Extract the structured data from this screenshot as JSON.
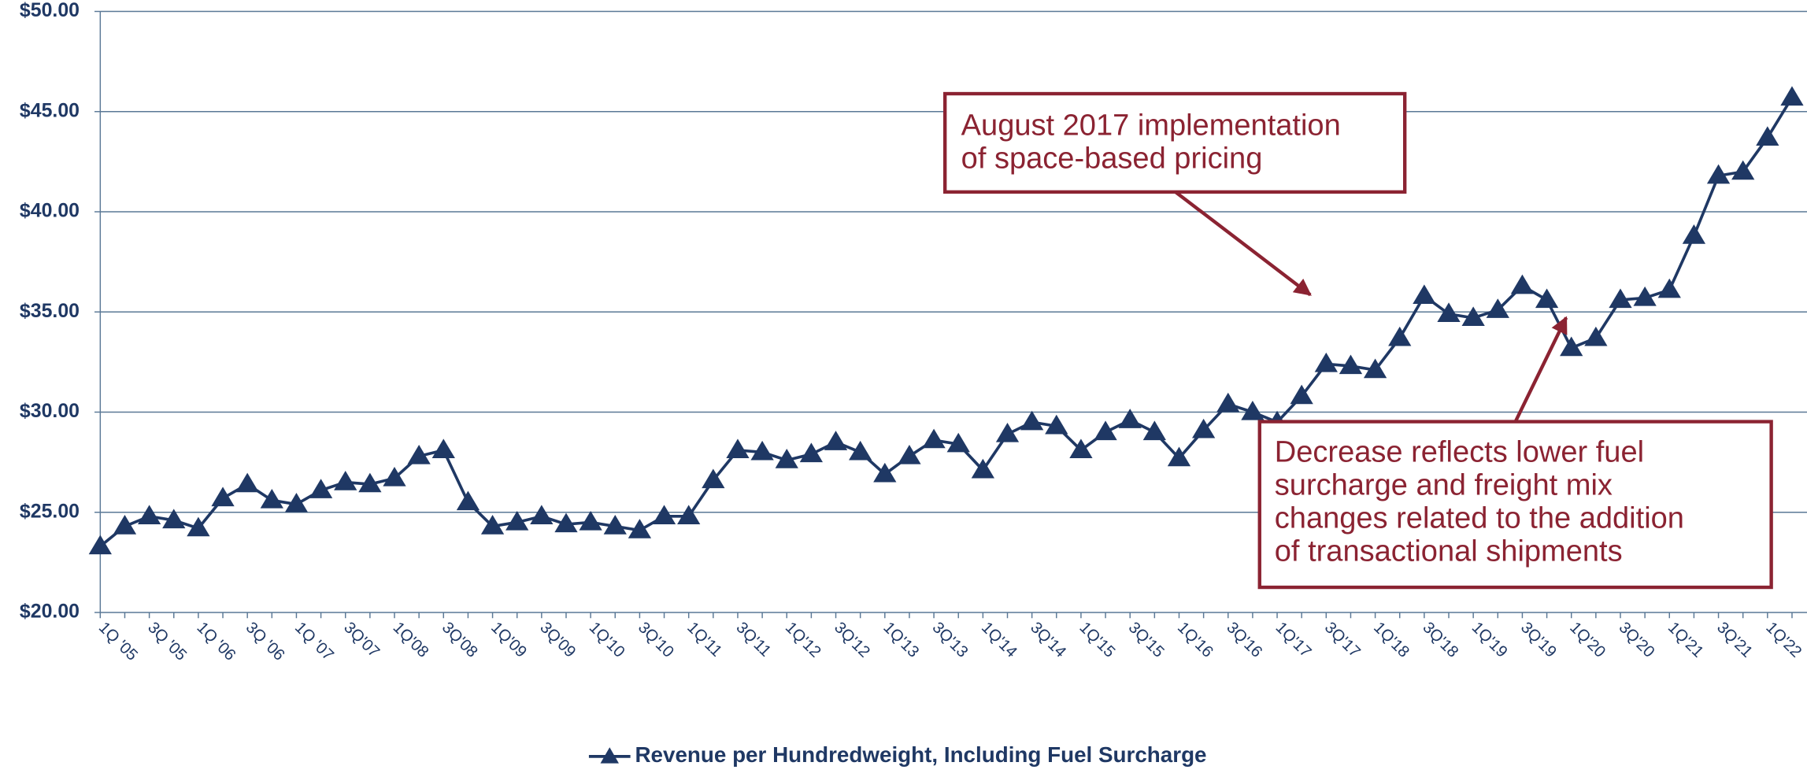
{
  "chart_data": {
    "type": "line",
    "categories": [
      "1Q '05",
      null,
      "3Q '05",
      null,
      "1Q '06",
      null,
      "3Q '06",
      null,
      "1Q '07",
      null,
      "3Q'07",
      null,
      "1Q'08",
      null,
      "3Q'08",
      null,
      "1Q'09",
      null,
      "3Q'09",
      null,
      "1Q'10",
      null,
      "3Q'10",
      null,
      "1Q'11",
      null,
      "3Q'11",
      null,
      "1Q'12",
      null,
      "3Q'12",
      null,
      "1Q'13",
      null,
      "3Q'13",
      null,
      "1Q'14",
      null,
      "3Q'14",
      null,
      "1Q'15",
      null,
      "3Q'15",
      null,
      "1Q'16",
      null,
      "3Q'16",
      null,
      "1Q'17",
      null,
      "3Q'17",
      null,
      "1Q'18",
      null,
      "3Q'18",
      null,
      "1Q'19",
      null,
      "3Q'19",
      null,
      "1Q'20",
      null,
      "3Q'20",
      null,
      "1Q'21",
      null,
      "3Q'21",
      null,
      "1Q'22",
      null
    ],
    "series": [
      {
        "name": "Revenue per Hundredweight, Including Fuel Surcharge",
        "color": "#1f3864",
        "values": [
          23.3,
          24.3,
          24.8,
          24.6,
          24.2,
          25.7,
          26.4,
          25.6,
          25.4,
          26.1,
          26.5,
          26.4,
          26.7,
          27.8,
          28.1,
          25.5,
          24.3,
          24.5,
          24.8,
          24.4,
          24.5,
          24.3,
          24.1,
          24.8,
          24.8,
          26.6,
          28.1,
          28.0,
          27.6,
          27.9,
          28.5,
          28.0,
          26.9,
          27.8,
          28.6,
          28.4,
          27.1,
          28.9,
          29.5,
          29.3,
          28.1,
          29.0,
          29.6,
          29.0,
          27.7,
          29.1,
          30.4,
          30.0,
          29.5,
          30.8,
          32.4,
          32.3,
          32.1,
          33.7,
          35.8,
          34.9,
          34.7,
          35.1,
          36.3,
          35.6,
          33.2,
          33.7,
          35.6,
          35.7,
          36.1,
          38.8,
          41.8,
          42.0,
          43.7,
          45.7
        ]
      }
    ],
    "ylim": [
      20,
      50
    ],
    "yticks": [
      {
        "value": 20,
        "label": "$20.00"
      },
      {
        "value": 25,
        "label": "$25.00"
      },
      {
        "value": 30,
        "label": "$30.00"
      },
      {
        "value": 35,
        "label": "$35.00"
      },
      {
        "value": 40,
        "label": "$40.00"
      },
      {
        "value": 45,
        "label": "$45.00"
      },
      {
        "value": 50,
        "label": "$50.00"
      }
    ],
    "grid": true,
    "legend": "bottom",
    "annotations": [
      {
        "lines": [
          "August 2017 implementation",
          "of space-based pricing"
        ]
      },
      {
        "lines": [
          "Decrease reflects lower fuel",
          "surcharge and freight mix",
          "changes related to the addition",
          "of transactional shipments"
        ]
      }
    ]
  }
}
